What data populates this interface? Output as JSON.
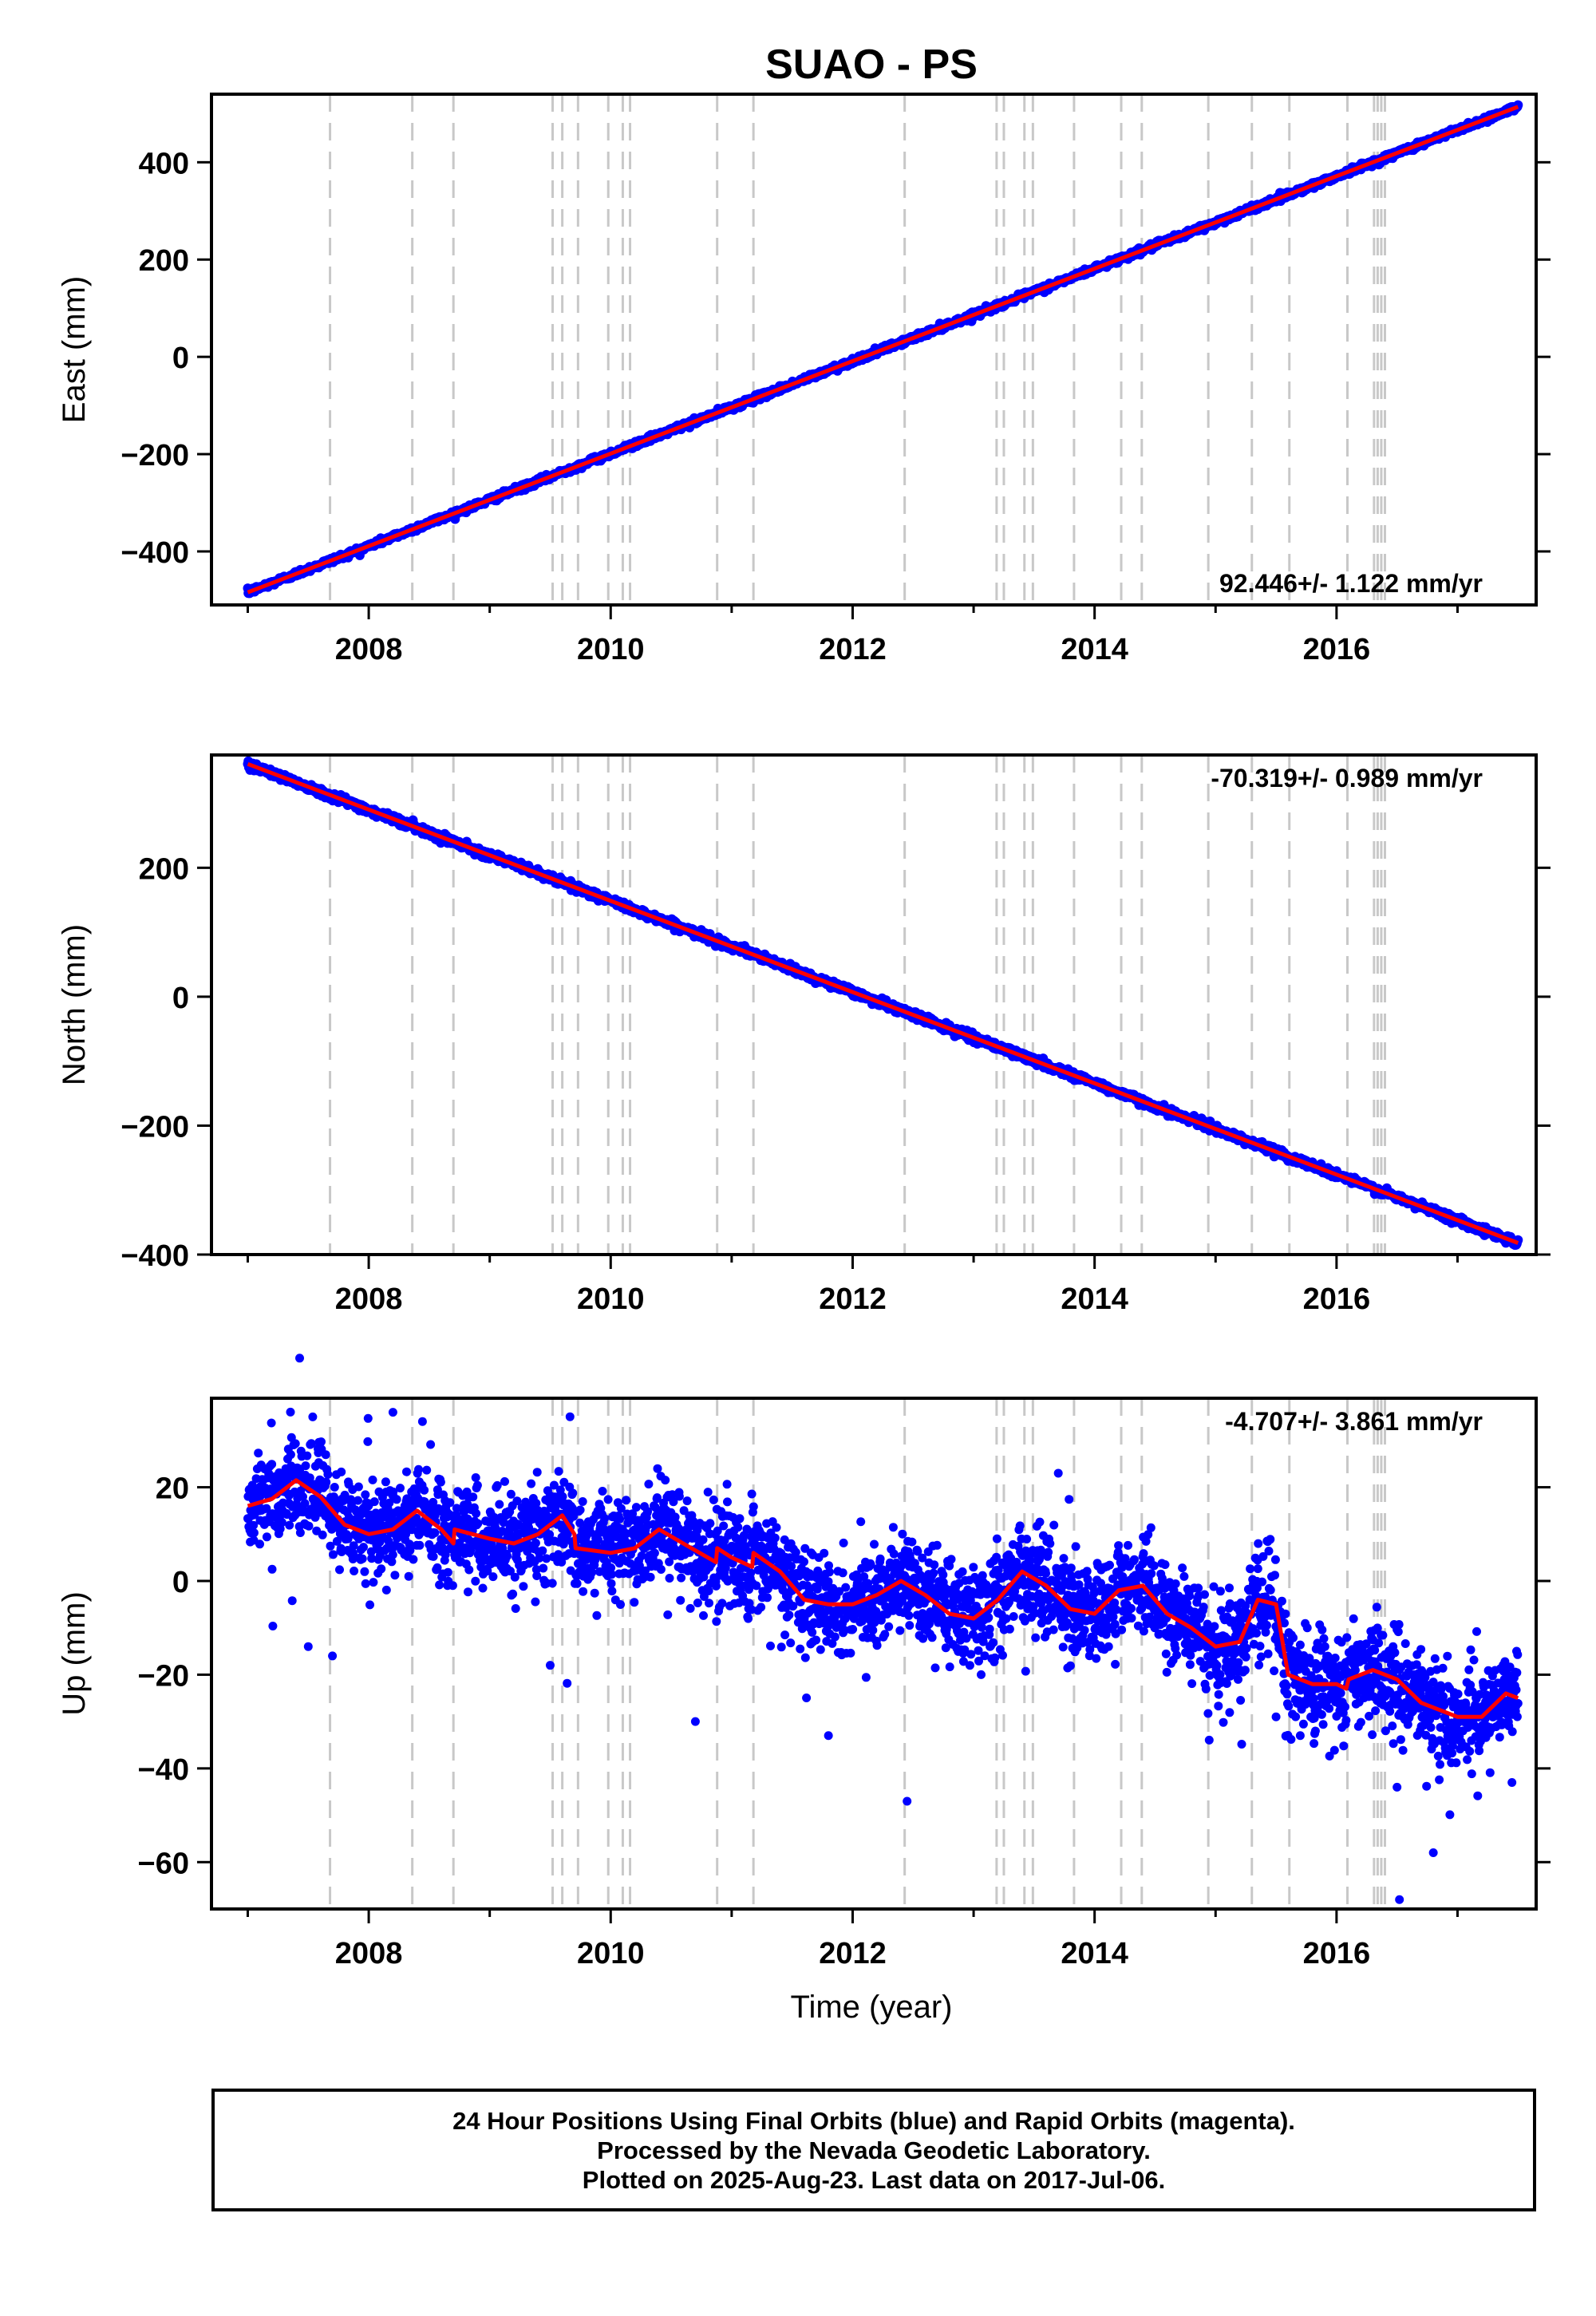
{
  "title": "SUAO - PS",
  "colors": {
    "final_orbits": "#0000ff",
    "fit": "#ff0000",
    "offsets": "#c8c8c8"
  },
  "footer": {
    "line1": "24 Hour Positions Using Final Orbits (blue) and Rapid Orbits (magenta).",
    "line2": "Processed by the Nevada Geodetic Laboratory.",
    "line3": "Plotted on 2025-Aug-23. Last data on 2017-Jul-06."
  },
  "chart_data": [
    {
      "type": "scatter",
      "name": "east",
      "ylabel": "East (mm)",
      "xlabel": "",
      "xlim": [
        2006.7,
        2017.65
      ],
      "ylim": [
        -510,
        540
      ],
      "x_ticks": [
        "2008",
        "2010",
        "2012",
        "2014",
        "2016"
      ],
      "y_ticks": [
        "−400",
        "−200",
        "0",
        "200",
        "400"
      ],
      "rate_label": "92.446+/- 1.122 mm/yr",
      "trend": {
        "x": [
          2007.0,
          2017.5
        ],
        "y": [
          -484,
          514
        ]
      },
      "scatter_sigma_mm": 3,
      "offset_years": [
        2007.68,
        2008.36,
        2008.7,
        2009.52,
        2009.6,
        2009.73,
        2009.98,
        2010.1,
        2010.16,
        2010.88,
        2011.18,
        2012.43,
        2013.19,
        2013.25,
        2013.42,
        2013.49,
        2013.83,
        2014.22,
        2014.39,
        2014.94,
        2015.3,
        2015.61,
        2016.09,
        2016.31,
        2016.34,
        2016.37,
        2016.4
      ]
    },
    {
      "type": "scatter",
      "name": "north",
      "ylabel": "North (mm)",
      "xlabel": "",
      "xlim": [
        2006.7,
        2017.65
      ],
      "ylim": [
        -400,
        375
      ],
      "x_ticks": [
        "2008",
        "2010",
        "2012",
        "2014",
        "2016"
      ],
      "y_ticks": [
        "−400",
        "−200",
        "0",
        "200"
      ],
      "rate_label": "-70.319+/- 0.989 mm/yr",
      "trend": {
        "x": [
          2007.0,
          2017.5
        ],
        "y": [
          361,
          -382
        ]
      },
      "scatter_sigma_mm": 3,
      "offset_years": [
        2007.68,
        2008.36,
        2008.7,
        2009.52,
        2009.6,
        2009.73,
        2009.98,
        2010.1,
        2010.16,
        2010.88,
        2011.18,
        2012.43,
        2013.19,
        2013.25,
        2013.42,
        2013.49,
        2013.83,
        2014.22,
        2014.39,
        2014.94,
        2015.3,
        2015.61,
        2016.09,
        2016.31,
        2016.34,
        2016.37,
        2016.4
      ]
    },
    {
      "type": "scatter",
      "name": "up",
      "ylabel": "Up (mm)",
      "xlabel": "Time (year)",
      "xlim": [
        2006.7,
        2017.65
      ],
      "ylim": [
        -70,
        39
      ],
      "x_ticks": [
        "2008",
        "2010",
        "2012",
        "2014",
        "2016"
      ],
      "y_ticks": [
        "−60",
        "−40",
        "−20",
        "0",
        "20"
      ],
      "rate_label": "-4.707+/- 3.861 mm/yr",
      "trend": {
        "x": [
          2007.0,
          2007.2,
          2007.4,
          2007.6,
          2007.8,
          2008.0,
          2008.2,
          2008.4,
          2008.6,
          2008.7,
          2008.71,
          2009.0,
          2009.2,
          2009.4,
          2009.6,
          2009.7,
          2009.71,
          2010.0,
          2010.2,
          2010.4,
          2010.6,
          2010.87,
          2010.88,
          2011.0,
          2011.17,
          2011.18,
          2011.4,
          2011.6,
          2011.8,
          2012.0,
          2012.2,
          2012.4,
          2012.6,
          2012.8,
          2013.0,
          2013.2,
          2013.4,
          2013.6,
          2013.8,
          2014.0,
          2014.2,
          2014.4,
          2014.6,
          2014.8,
          2015.0,
          2015.2,
          2015.35,
          2015.5,
          2015.6,
          2015.8,
          2016.0,
          2016.08,
          2016.1,
          2016.3,
          2016.5,
          2016.7,
          2016.9,
          2017.0,
          2017.2,
          2017.4,
          2017.5
        ],
        "y": [
          16,
          17.5,
          21.5,
          18,
          12,
          10,
          11,
          15,
          11,
          8,
          11,
          9,
          8,
          10,
          14,
          10,
          7,
          6,
          7,
          11,
          8,
          4,
          7,
          5,
          3,
          6,
          2,
          -4,
          -5,
          -5,
          -3,
          0,
          -3,
          -7,
          -8,
          -4,
          2,
          -1,
          -6,
          -7,
          -2,
          -1,
          -7,
          -10,
          -14,
          -13,
          -4,
          -5,
          -20,
          -22,
          -22,
          -23,
          -21,
          -19,
          -21,
          -26,
          -28,
          -29,
          -29,
          -24,
          -25
        ]
      },
      "scatter_sigma_mm": 5,
      "outliers": [
        {
          "x": 2007.5,
          "y": -14
        },
        {
          "x": 2007.7,
          "y": -16
        },
        {
          "x": 2008.2,
          "y": 36
        },
        {
          "x": 2009.5,
          "y": -18
        },
        {
          "x": 2010.7,
          "y": -30
        },
        {
          "x": 2011.8,
          "y": -33
        },
        {
          "x": 2012.45,
          "y": -47
        },
        {
          "x": 2013.7,
          "y": 23
        },
        {
          "x": 2015.5,
          "y": -29
        },
        {
          "x": 2015.7,
          "y": -33
        },
        {
          "x": 2016.5,
          "y": -44
        },
        {
          "x": 2016.8,
          "y": -58
        },
        {
          "x": 2016.52,
          "y": -68
        },
        {
          "x": 2017.45,
          "y": -43
        }
      ],
      "offset_years": [
        2007.68,
        2008.36,
        2008.7,
        2009.52,
        2009.6,
        2009.73,
        2009.98,
        2010.1,
        2010.16,
        2010.88,
        2011.18,
        2012.43,
        2013.19,
        2013.25,
        2013.42,
        2013.49,
        2013.83,
        2014.22,
        2014.39,
        2014.94,
        2015.3,
        2015.61,
        2016.09,
        2016.31,
        2016.34,
        2016.37,
        2016.4
      ]
    }
  ]
}
